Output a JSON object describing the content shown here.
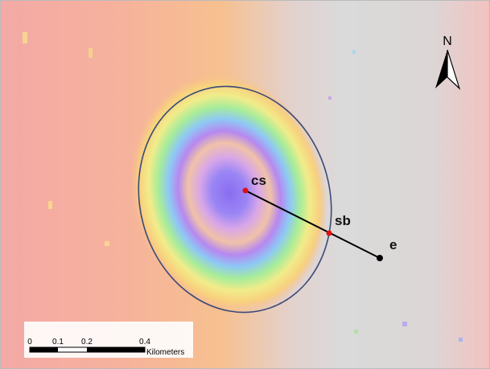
{
  "north": "N",
  "points": [
    {
      "label": "cs"
    },
    {
      "label": "sb"
    },
    {
      "label": "e"
    }
  ],
  "scale_bar": {
    "labels": [
      "0",
      "0.1",
      "0.2",
      "0.4"
    ],
    "unit": "Kilometers"
  }
}
